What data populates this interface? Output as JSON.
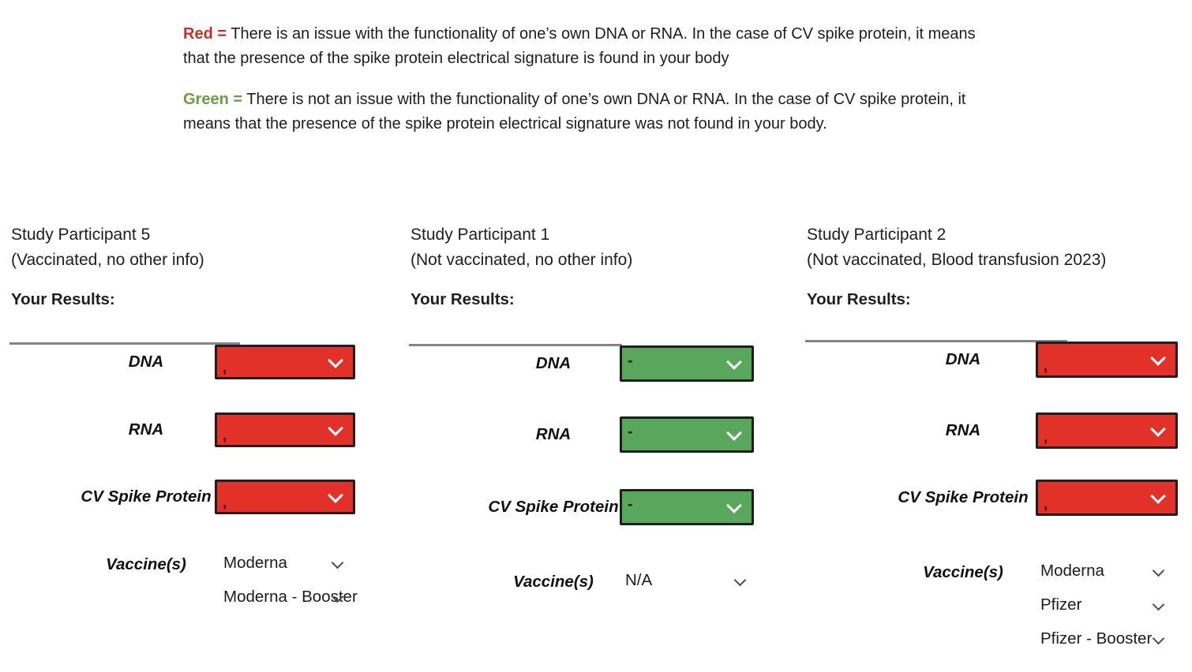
{
  "legend": {
    "red_label": "Red =",
    "red_body": " There is an issue with the functionality of one’s own DNA or RNA. In the case of CV spike protein, it means that the presence of the spike protein electrical signature is found in your body",
    "green_label": "Green =",
    "green_body": " There is not an issue with the functionality of one’s own DNA or RNA. In the case of CV spike protein, it means that the presence of the spike protein electrical signature was not found in your body."
  },
  "colors": {
    "result_red": "#e23128",
    "result_green": "#58a75d",
    "legend_red": "#c43026",
    "legend_green": "#6d9b44"
  },
  "panels": [
    {
      "title": "Study Participant 5",
      "subtitle": "(Vaccinated, no other info)",
      "results_heading": "Your Results:",
      "rows": [
        {
          "label": "DNA",
          "status": "red",
          "value": ","
        },
        {
          "label": "RNA",
          "status": "red",
          "value": ","
        },
        {
          "label": "CV Spike Protein",
          "status": "red",
          "value": ","
        }
      ],
      "vaccine_label": "Vaccine(s)",
      "vaccines": [
        "Moderna",
        "Moderna - Booster"
      ]
    },
    {
      "title": "Study Participant 1",
      "subtitle": "(Not vaccinated, no other info)",
      "results_heading": "Your Results:",
      "rows": [
        {
          "label": "DNA",
          "status": "green",
          "value": "-"
        },
        {
          "label": "RNA",
          "status": "green",
          "value": "-"
        },
        {
          "label": "CV Spike Protein",
          "status": "green",
          "value": "-"
        }
      ],
      "vaccine_label": "Vaccine(s)",
      "vaccines": [
        "N/A"
      ]
    },
    {
      "title": "Study Participant 2",
      "subtitle": "(Not vaccinated, Blood transfusion 2023)",
      "results_heading": "Your Results:",
      "rows": [
        {
          "label": "DNA",
          "status": "red",
          "value": ","
        },
        {
          "label": "RNA",
          "status": "red",
          "value": ","
        },
        {
          "label": "CV Spike Protein",
          "status": "red",
          "value": ","
        }
      ],
      "vaccine_label": "Vaccine(s)",
      "vaccines": [
        "Moderna",
        "Pfizer",
        "Pfizer - Booster"
      ]
    }
  ]
}
